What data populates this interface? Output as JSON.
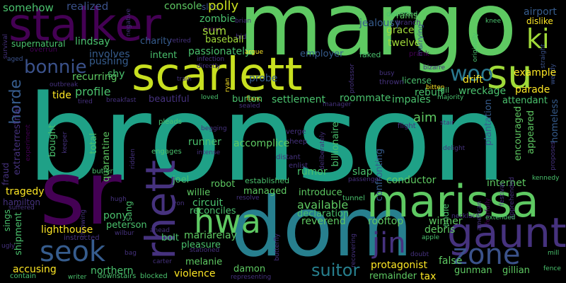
{
  "colors": {
    "background": "#000000",
    "palette": [
      "#440154",
      "#46327e",
      "#365c8d",
      "#277f8e",
      "#1fa187",
      "#4ac16d",
      "#a0da39",
      "#fde725"
    ]
  },
  "words": {
    "bronson": "bronson",
    "margo": "margo",
    "stalker": "stalker",
    "scarlett": "scarlett",
    "sr": "sr",
    "dom": "dom",
    "marissa": "marissa",
    "rhett": "rhett",
    "gaunt": "gaunt",
    "su": "su",
    "woo": "woo",
    "seok": "seok",
    "hwa": "hwa",
    "zone": "zone",
    "jin": "jin",
    "ki": "ki",
    "bonnie": "bonnie",
    "horde": "horde",
    "suitor": "suitor",
    "somehow": "somehow",
    "realized": "realized",
    "console": "console",
    "sled": "sled",
    "polly": "polly",
    "zombie": "zombie",
    "airport": "airport",
    "dislike": "dislike",
    "sum": "sum",
    "jealousy": "jealousy",
    "grace": "grace",
    "twelve": "twelve",
    "supernatural": "supernatural",
    "lindsay": "lindsay",
    "passionately": "passionately",
    "charity": "charity",
    "baseball": "baseball",
    "involves": "involves",
    "intent": "intent",
    "employer": "employer",
    "faked": "faked",
    "pushing": "pushing",
    "recurring": "recurring",
    "drift": "drift",
    "example": "example",
    "profile": "profile",
    "probe": "probe",
    "rebuff": "rebuff",
    "license": "license",
    "parade": "parade",
    "wreckage": "wreckage",
    "shy": "shy",
    "tide": "tide",
    "beautiful": "beautiful",
    "burton": "burton",
    "settlement": "settlement",
    "roommate": "roommate",
    "impales": "impales",
    "gil": "gil",
    "attendant": "attendant",
    "homeless": "homeless",
    "aim": "aim",
    "encouraged": "encouraged",
    "appeared": "appeared",
    "extraterrestrial": "extraterrestrial",
    "bought": "bought",
    "total": "total",
    "quarantine": "quarantine",
    "accomplice": "accomplice",
    "runner": "runner",
    "billionaire": "billionaire",
    "slap": "slap",
    "rumor": "rumor",
    "confronting": "confronting",
    "plantation": "plantation",
    "conductor": "conductor",
    "internet": "internet",
    "fraud": "fraud",
    "tragedy": "tragedy",
    "joel": "joel",
    "robot": "robot",
    "willie": "willie",
    "managed": "managed",
    "established": "established",
    "introduce": "introduce",
    "passenger": "passenger",
    "pony": "pony",
    "circuit": "circuit",
    "reconciles": "reconciles",
    "available": "available",
    "declaration": "declaration",
    "rooftop": "rooftop",
    "winner": "winner",
    "debris": "debris",
    "shipment": "shipment",
    "lighthouse": "lighthouse",
    "peterson": "peterson",
    "maria": "maria",
    "relay": "relay",
    "reverend": "reverend",
    "bolt": "bolt",
    "pleasure": "pleasure",
    "melanie": "melanie",
    "damon": "damon",
    "protagonist": "protagonist",
    "false": "false",
    "gunman": "gunman",
    "gillian": "gillian",
    "accusing": "accusing",
    "northern": "northern",
    "violence": "violence",
    "remainder": "remainder",
    "tax": "tax",
    "sings": "sings",
    "hamilton": "hamilton",
    "suffered": "suffered",
    "ugly": "ugly",
    "contain": "contain",
    "writer": "writer",
    "downstairs": "downstairs",
    "blocked": "blocked",
    "representing": "representing",
    "carter": "carter",
    "stationed": "stationed",
    "ahead": "ahead",
    "wilbur": "wilbur",
    "instructed": "instructed",
    "bag": "bag",
    "doubt": "doubt",
    "apple": "apple",
    "mill": "mill",
    "fence": "fence",
    "necklace": "necklace",
    "extended": "extended",
    "kennedy": "kennedy",
    "american": "american",
    "fearfully": "fearfully",
    "festival": "festival",
    "apprehended": "apprehended",
    "proposes": "proposes",
    "straight": "straight",
    "wendy": "wendy",
    "knee": "knee",
    "originally": "originally",
    "deserted": "deserted",
    "ramsey": "ramsey",
    "branch": "branch",
    "marrying": "marrying",
    "brawl": "brawl",
    "brian": "brian",
    "bid": "bid",
    "argue": "argue",
    "retired": "retired",
    "overrun": "overrun",
    "aged": "aged",
    "survival": "survival",
    "negative": "negative",
    "outbreak": "outbreak",
    "tired": "tired",
    "breakfast": "breakfast",
    "train": "train",
    "loved": "loved",
    "ryan": "ryan",
    "fianc": "fianc",
    "professor": "professor",
    "busy": "busy",
    "thrown": "thrown",
    "bitten": "bitten",
    "majority": "majority",
    "prank": "prank",
    "sealed": "sealed",
    "manager": "manager",
    "stair": "stair",
    "flight": "flight",
    "delight": "delight",
    "pleads": "pleads",
    "begging": "begging",
    "verge": "verge",
    "sheep": "sheep",
    "enlist": "enlist",
    "distant": "distant",
    "deliberately": "deliberately",
    "engages": "engages",
    "intense": "intense",
    "ridden": "ridden",
    "butler": "butler",
    "experiment": "experiment",
    "keeper": "keeper",
    "hugh": "hugh",
    "throwing": "throwing",
    "sang": "sang",
    "von": "von",
    "resolve": "resolve",
    "tunnel": "tunnel",
    "endie": "endie",
    "recovering": "recovering",
    "butterfly": "butterfly",
    "infection": "infection",
    "directly": "directly",
    "bizarre": "bizarre"
  }
}
